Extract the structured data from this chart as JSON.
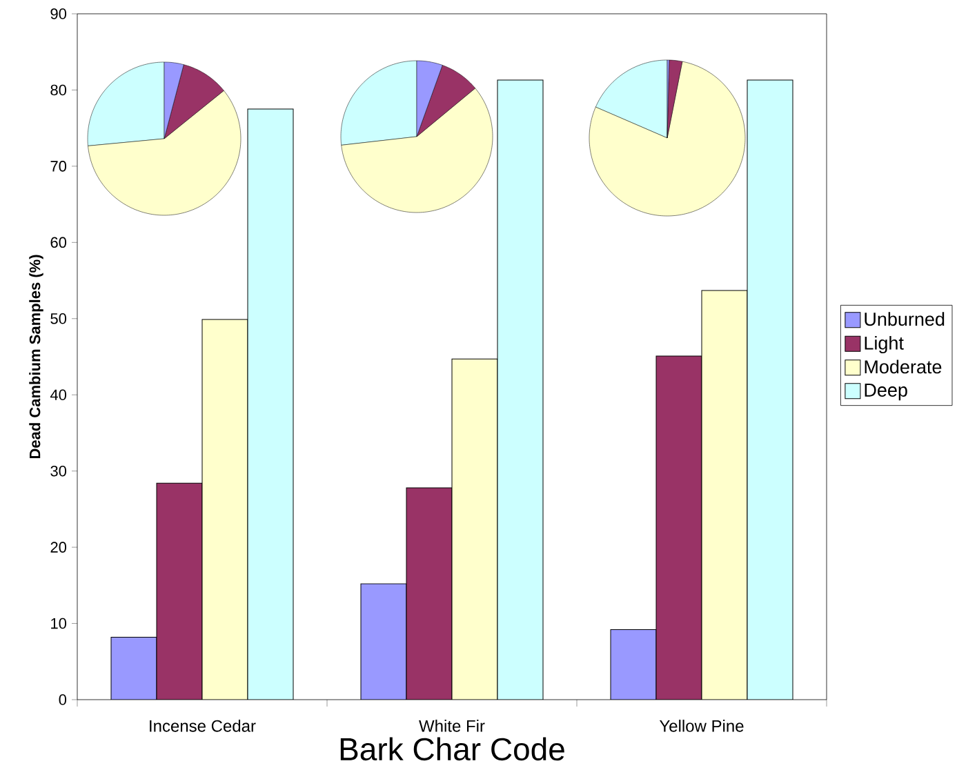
{
  "chart_data": [
    {
      "type": "bar",
      "xlabel": "Bark Char Code",
      "ylabel": "Dead Cambium Samples (%)",
      "categories": [
        "Incense Cedar",
        "White Fir",
        "Yellow Pine"
      ],
      "ylim": [
        0,
        90
      ],
      "yticks": [
        0,
        10,
        20,
        30,
        40,
        50,
        60,
        70,
        80,
        90
      ],
      "legend": "right",
      "grid": false,
      "series": [
        {
          "name": "Unburned",
          "color": "#9999ff",
          "values": [
            8.2,
            15.2,
            9.2
          ]
        },
        {
          "name": "Light",
          "color": "#993366",
          "values": [
            28.4,
            27.8,
            45.1
          ]
        },
        {
          "name": "Moderate",
          "color": "#ffffcc",
          "values": [
            49.9,
            44.7,
            53.7
          ]
        },
        {
          "name": "Deep",
          "color": "#ccffff",
          "values": [
            77.5,
            81.3,
            81.3
          ]
        }
      ]
    },
    {
      "type": "pie",
      "categories": [
        null,
        null,
        null,
        null
      ],
      "values": [
        4.1,
        10.1,
        59.3,
        26.5
      ],
      "colors": [
        "#9999ff",
        "#993366",
        "#ffffcc",
        "#ccffff"
      ]
    },
    {
      "type": "pie",
      "categories": [
        null,
        null,
        null,
        null
      ],
      "values": [
        5.5,
        8.5,
        59.2,
        26.8
      ],
      "colors": [
        "#9999ff",
        "#993366",
        "#ffffcc",
        "#ccffff"
      ]
    },
    {
      "type": "pie",
      "categories": [
        null,
        null,
        null,
        null
      ],
      "values": [
        0.4,
        2.7,
        78.4,
        18.5
      ],
      "colors": [
        "#9999ff",
        "#993366",
        "#ffffcc",
        "#ccffff"
      ]
    }
  ]
}
